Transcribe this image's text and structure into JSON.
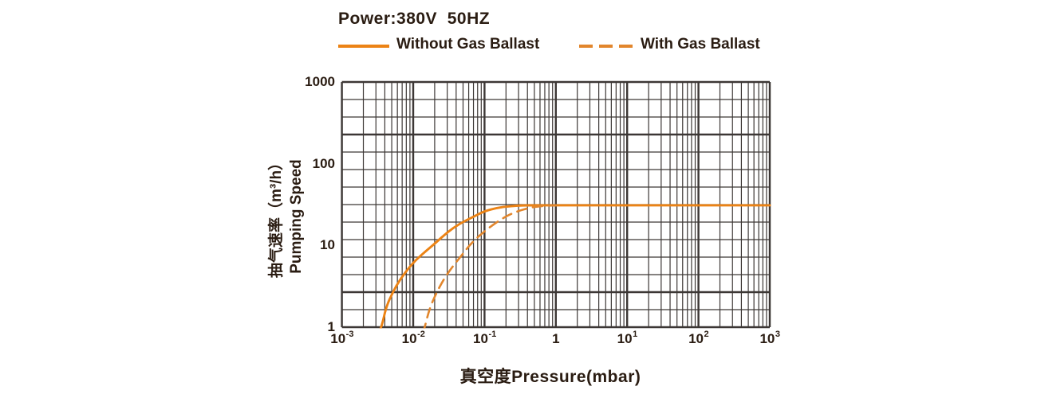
{
  "chart_data": {
    "type": "line",
    "title": "Power:380V  50HZ",
    "xlabel": "真空度Pressure(mbar)",
    "ylabel_cn": "抽气速率（m³/h）",
    "ylabel_en": "Pumping Speed",
    "x_scale": "log",
    "y_scale": "log",
    "xlim": [
      0.001,
      1000
    ],
    "ylim": [
      1,
      1000
    ],
    "grid": true,
    "grid_color": "#3c3735",
    "legend_position": "top",
    "x_ticks": [
      {
        "base": "10",
        "exp": "-3",
        "value": 0.001
      },
      {
        "base": "10",
        "exp": "-2",
        "value": 0.01
      },
      {
        "base": "10",
        "exp": "-1",
        "value": 0.1
      },
      {
        "base": "1",
        "exp": "",
        "value": 1
      },
      {
        "base": "10",
        "exp": "1",
        "value": 10
      },
      {
        "base": "10",
        "exp": "2",
        "value": 100
      },
      {
        "base": "10",
        "exp": "3",
        "value": 1000
      }
    ],
    "y_ticks": [
      {
        "label": "1000",
        "value": 1000
      },
      {
        "label": "100",
        "value": 100
      },
      {
        "label": "10",
        "value": 10
      },
      {
        "label": "1",
        "value": 1
      }
    ],
    "series": [
      {
        "name": "Without Gas Ballast",
        "line_style": "solid",
        "color": "#ec8315",
        "points": [
          [
            0.0033,
            0.85
          ],
          [
            0.0036,
            1
          ],
          [
            0.0042,
            1.8
          ],
          [
            0.0052,
            2.7
          ],
          [
            0.0065,
            3.8
          ],
          [
            0.0085,
            5.2
          ],
          [
            0.011,
            6.7
          ],
          [
            0.015,
            8.5
          ],
          [
            0.02,
            10.5
          ],
          [
            0.03,
            14.5
          ],
          [
            0.045,
            18.5
          ],
          [
            0.067,
            22
          ],
          [
            0.1,
            26.3
          ],
          [
            0.15,
            28.8
          ],
          [
            0.22,
            30.2
          ],
          [
            0.35,
            30.9
          ],
          [
            0.5,
            31
          ],
          [
            1,
            31
          ],
          [
            10,
            31
          ],
          [
            100,
            31
          ],
          [
            1000,
            31
          ]
        ]
      },
      {
        "name": "With Gas Ballast",
        "line_style": "dashed",
        "color": "#e2862c",
        "points": [
          [
            0.0138,
            0.85
          ],
          [
            0.0145,
            1
          ],
          [
            0.017,
            1.7
          ],
          [
            0.021,
            2.6
          ],
          [
            0.027,
            3.9
          ],
          [
            0.035,
            5.4
          ],
          [
            0.048,
            7.6
          ],
          [
            0.064,
            10.5
          ],
          [
            0.1,
            15
          ],
          [
            0.17,
            21
          ],
          [
            0.25,
            25
          ],
          [
            0.42,
            29
          ],
          [
            0.65,
            30.4
          ],
          [
            1.0,
            31
          ]
        ]
      }
    ],
    "plateau_pumping_speed_m3h": 31
  }
}
